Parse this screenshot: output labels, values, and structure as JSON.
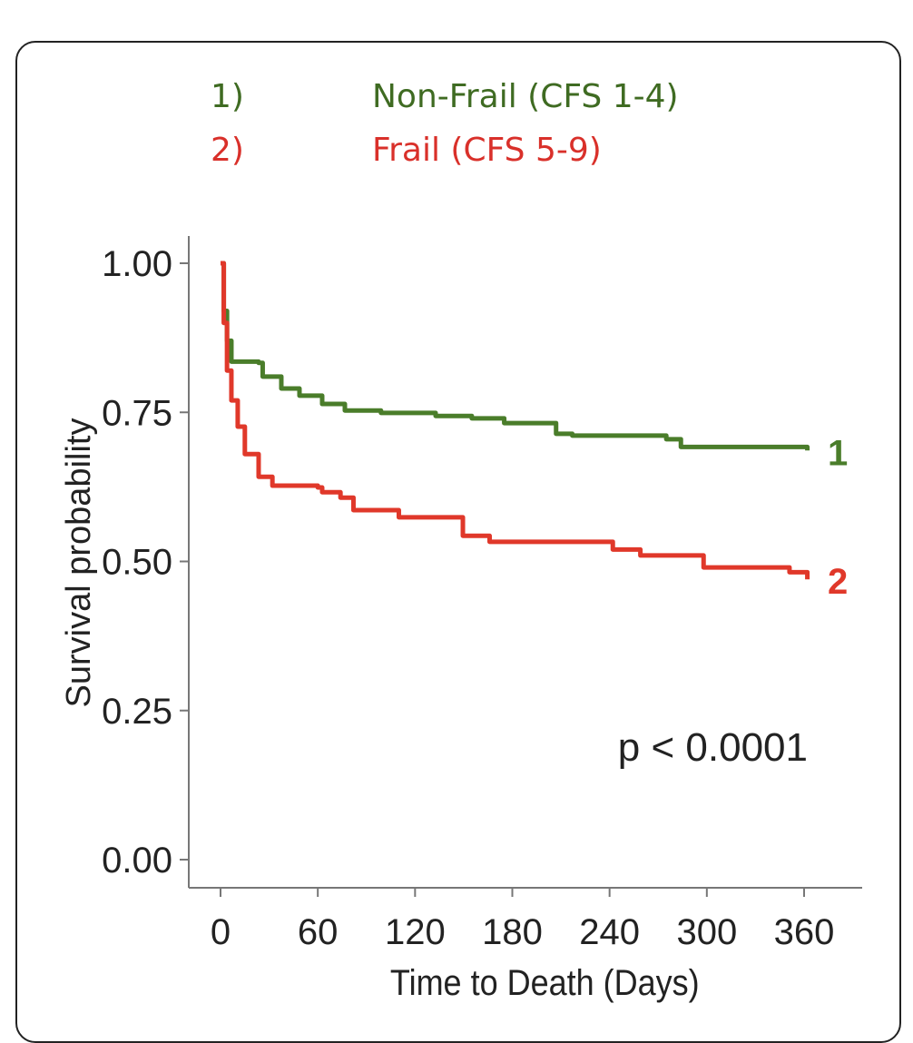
{
  "chart_data": {
    "type": "line",
    "title": "",
    "xlabel": "Time to Death (Days)",
    "ylabel": "Survival probability",
    "xlim": [
      0,
      360
    ],
    "ylim": [
      0,
      1
    ],
    "xticks": [
      "0",
      "60",
      "120",
      "180",
      "240",
      "300",
      "360"
    ],
    "yticks": [
      "0.00",
      "0.25",
      "0.50",
      "0.75",
      "1.00"
    ],
    "legend": [
      {
        "num": "1)",
        "label": "Non-Frail (CFS 1-4)",
        "color": "#3f6b22"
      },
      {
        "num": "2)",
        "label": "Frail (CFS 5-9)",
        "color": "#d9302a"
      }
    ],
    "annotation": "p < 0.0001",
    "series": [
      {
        "name": "Non-Frail (CFS 1-4)",
        "end_label": "1",
        "color": "#4a7d2a",
        "x": [
          0,
          2,
          4,
          6.7,
          23.5,
          26,
          37.5,
          48.7,
          62.7,
          76.7,
          99,
          132.7,
          155,
          175,
          207,
          217,
          275,
          284,
          359,
          362
        ],
        "y": [
          1.0,
          0.92,
          0.87,
          0.835,
          0.833,
          0.81,
          0.79,
          0.778,
          0.764,
          0.753,
          0.749,
          0.744,
          0.74,
          0.732,
          0.714,
          0.711,
          0.705,
          0.692,
          0.692,
          0.686
        ]
      },
      {
        "name": "Frail (CFS 5-9)",
        "end_label": "2",
        "color": "#e0382a",
        "x": [
          0,
          2,
          4,
          6.7,
          10.6,
          15,
          23.5,
          32,
          60,
          62.7,
          74,
          82,
          110,
          149.5,
          166,
          242,
          259,
          298,
          351,
          362
        ],
        "y": [
          1.0,
          0.9,
          0.82,
          0.77,
          0.726,
          0.68,
          0.642,
          0.627,
          0.624,
          0.616,
          0.607,
          0.586,
          0.574,
          0.543,
          0.533,
          0.52,
          0.51,
          0.49,
          0.482,
          0.47
        ]
      }
    ]
  }
}
